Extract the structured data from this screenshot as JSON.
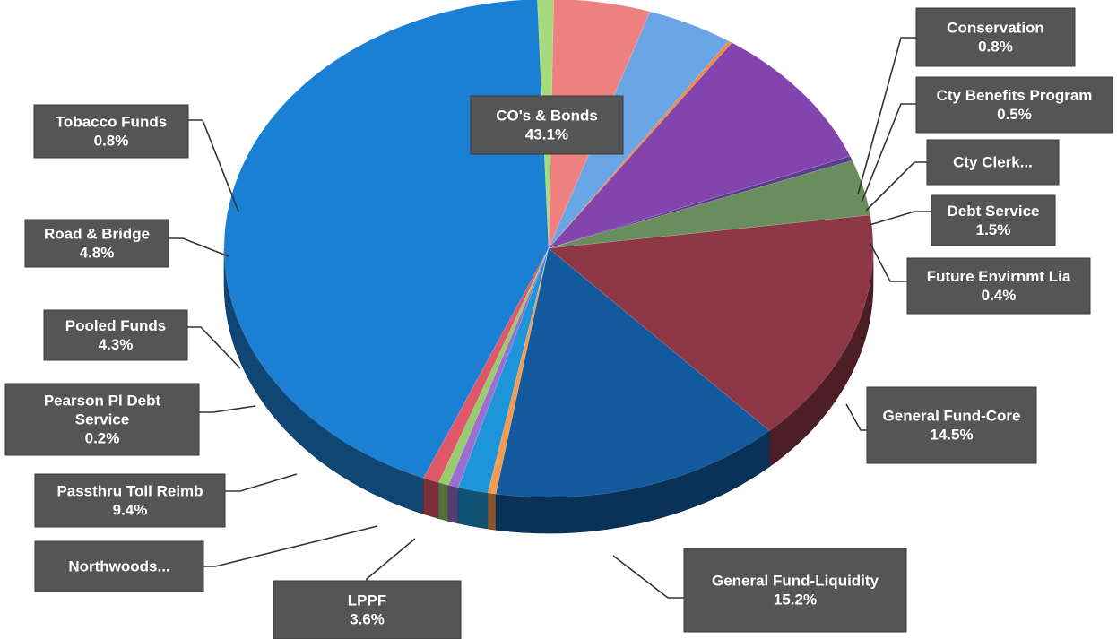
{
  "chart_data": {
    "type": "pie",
    "title": "",
    "slices": [
      {
        "label": "CO's & Bonds",
        "value_text": "43.1%",
        "value": 43.1,
        "color": "#1b7fd3"
      },
      {
        "label": "Conservation",
        "value_text": "0.8%",
        "value": 0.8,
        "color": "#e0566a"
      },
      {
        "label": "Cty Benefits Program",
        "value_text": "0.5%",
        "value": 0.5,
        "color": "#96cc6c"
      },
      {
        "label": "Cty Clerk...",
        "value_text": "",
        "value": 0.5,
        "color": "#9a6fd0"
      },
      {
        "label": "Debt Service",
        "value_text": "1.5%",
        "value": 1.5,
        "color": "#1e95d8"
      },
      {
        "label": "Future Envirnmt Lia",
        "value_text": "0.4%",
        "value": 0.4,
        "color": "#f49a52"
      },
      {
        "label": "General Fund-Core",
        "value_text": "14.5%",
        "value": 14.5,
        "color": "#13599e"
      },
      {
        "label": "General Fund-Liquidity",
        "value_text": "15.2%",
        "value": 15.2,
        "color": "#8e3747"
      },
      {
        "label": "LPPF",
        "value_text": "3.6%",
        "value": 3.6,
        "color": "#6a8d5e"
      },
      {
        "label": "Northwoods...",
        "value_text": "",
        "value": 0.3,
        "color": "#5b3d8f"
      },
      {
        "label": "Passthru Toll Reimb",
        "value_text": "9.4%",
        "value": 9.4,
        "color": "#8344ad"
      },
      {
        "label": "Pearson Pl Debt Service",
        "value_text": "0.2%",
        "value": 0.2,
        "color": "#f08a44"
      },
      {
        "label": "Pooled Funds",
        "value_text": "4.3%",
        "value": 4.3,
        "color": "#6aa5e6"
      },
      {
        "label": "Road & Bridge",
        "value_text": "4.8%",
        "value": 4.8,
        "color": "#ef8080"
      },
      {
        "label": "Tobacco Funds",
        "value_text": "0.8%",
        "value": 0.8,
        "color": "#a6da7a"
      }
    ],
    "label_color": "#555555",
    "label_text_color": "#ffffff",
    "leader_color": "#333333"
  }
}
